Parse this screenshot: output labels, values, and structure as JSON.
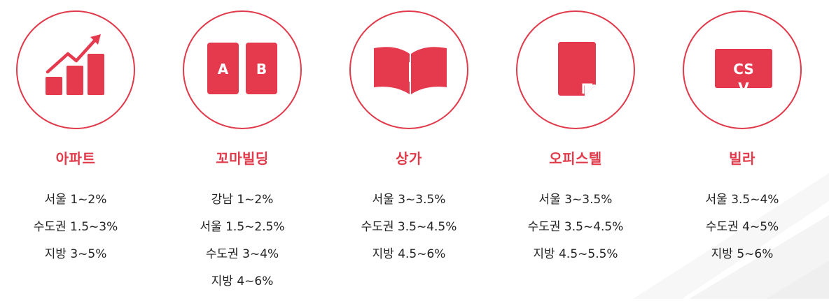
{
  "accent_color": "#e53a4e",
  "categories": [
    {
      "icon": "growth-chart-icon",
      "title": "아파트",
      "lines": [
        "서울 1~2%",
        "수도권 1.5~3%",
        "지방 3~5%"
      ]
    },
    {
      "icon": "ab-blocks-icon",
      "title": "꼬마빌딩",
      "icon_labels": [
        "A",
        "B"
      ],
      "lines": [
        "강남 1~2%",
        "서울 1.5~2.5%",
        "수도권 3~4%",
        "지방 4~6%"
      ]
    },
    {
      "icon": "open-book-icon",
      "title": "상가",
      "lines": [
        "서울 3~3.5%",
        "수도권 3.5~4.5%",
        "지방 4.5~6%"
      ]
    },
    {
      "icon": "document-icon",
      "title": "오피스텔",
      "lines": [
        "서울 3~3.5%",
        "수도권 3.5~4.5%",
        "지방 4.5~5.5%"
      ]
    },
    {
      "icon": "csv-file-icon",
      "title": "빌라",
      "icon_labels": [
        "CS",
        "V"
      ],
      "lines": [
        "서울 3.5~4%",
        "수도권 4~5%",
        "지방 5~6%"
      ]
    }
  ]
}
